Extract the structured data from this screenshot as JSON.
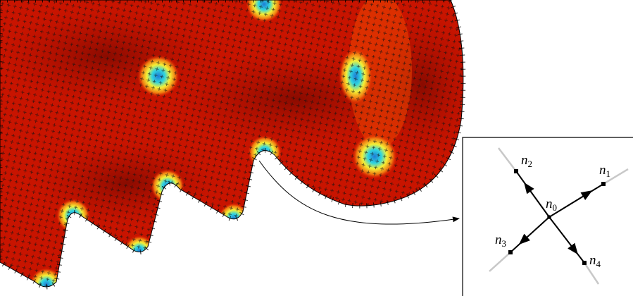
{
  "inset": {
    "nodes": [
      {
        "label": "n",
        "subscript": "0"
      },
      {
        "label": "n",
        "subscript": "1"
      },
      {
        "label": "n",
        "subscript": "2"
      },
      {
        "label": "n",
        "subscript": "3"
      },
      {
        "label": "n",
        "subscript": "4"
      }
    ]
  }
}
